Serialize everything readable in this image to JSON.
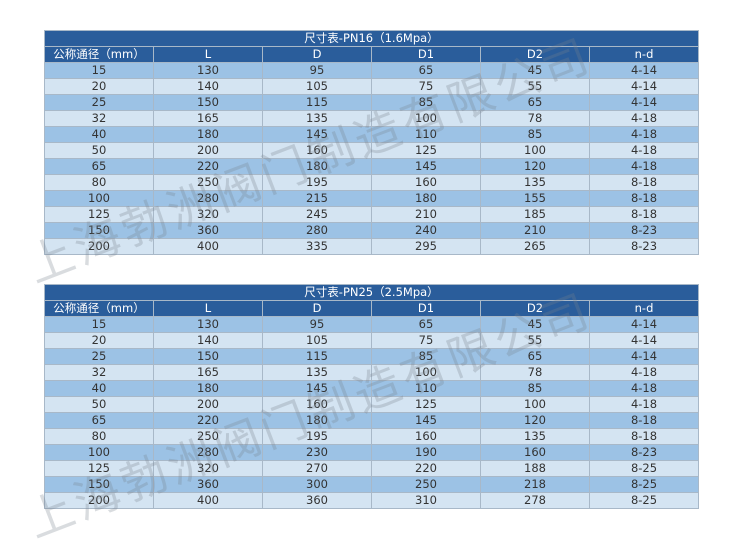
{
  "watermark": "上海勃洲阀门制造有限公司",
  "columns": [
    "公称通径（mm）",
    "L",
    "D",
    "D1",
    "D2",
    "n-d"
  ],
  "tables": [
    {
      "title": "尺寸表-PN16（1.6Mpa）",
      "rows": [
        [
          "15",
          "130",
          "95",
          "65",
          "45",
          "4-14"
        ],
        [
          "20",
          "140",
          "105",
          "75",
          "55",
          "4-14"
        ],
        [
          "25",
          "150",
          "115",
          "85",
          "65",
          "4-14"
        ],
        [
          "32",
          "165",
          "135",
          "100",
          "78",
          "4-18"
        ],
        [
          "40",
          "180",
          "145",
          "110",
          "85",
          "4-18"
        ],
        [
          "50",
          "200",
          "160",
          "125",
          "100",
          "4-18"
        ],
        [
          "65",
          "220",
          "180",
          "145",
          "120",
          "4-18"
        ],
        [
          "80",
          "250",
          "195",
          "160",
          "135",
          "8-18"
        ],
        [
          "100",
          "280",
          "215",
          "180",
          "155",
          "8-18"
        ],
        [
          "125",
          "320",
          "245",
          "210",
          "185",
          "8-18"
        ],
        [
          "150",
          "360",
          "280",
          "240",
          "210",
          "8-23"
        ],
        [
          "200",
          "400",
          "335",
          "295",
          "265",
          "8-23"
        ]
      ]
    },
    {
      "title": "尺寸表-PN25（2.5Mpa）",
      "rows": [
        [
          "15",
          "130",
          "95",
          "65",
          "45",
          "4-14"
        ],
        [
          "20",
          "140",
          "105",
          "75",
          "55",
          "4-14"
        ],
        [
          "25",
          "150",
          "115",
          "85",
          "65",
          "4-14"
        ],
        [
          "32",
          "165",
          "135",
          "100",
          "78",
          "4-18"
        ],
        [
          "40",
          "180",
          "145",
          "110",
          "85",
          "4-18"
        ],
        [
          "50",
          "200",
          "160",
          "125",
          "100",
          "4-18"
        ],
        [
          "65",
          "220",
          "180",
          "145",
          "120",
          "8-18"
        ],
        [
          "80",
          "250",
          "195",
          "160",
          "135",
          "8-18"
        ],
        [
          "100",
          "280",
          "230",
          "190",
          "160",
          "8-23"
        ],
        [
          "125",
          "320",
          "270",
          "220",
          "188",
          "8-25"
        ],
        [
          "150",
          "360",
          "300",
          "250",
          "218",
          "8-25"
        ],
        [
          "200",
          "400",
          "360",
          "310",
          "278",
          "8-25"
        ]
      ]
    }
  ],
  "colors": {
    "header": "#2a5d9b",
    "row_dark": "#9cc2e5",
    "row_light": "#d4e4f2"
  }
}
